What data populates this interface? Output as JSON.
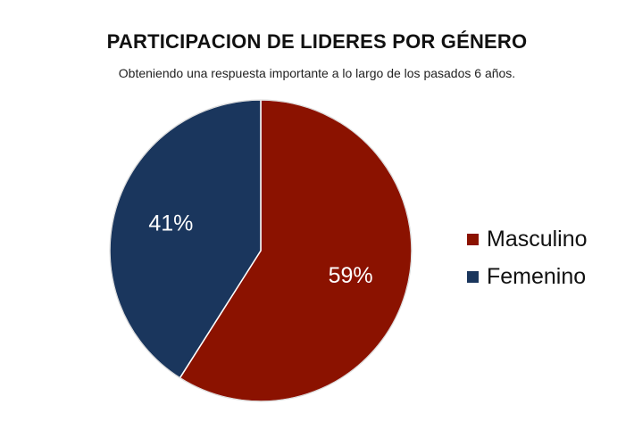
{
  "chart_data": {
    "type": "pie",
    "title": "PARTICIPACION DE LIDERES POR GÉNERO",
    "subtitle": "Obteniendo una respuesta importante a lo largo de los pasados 6 años.",
    "legend_position": "right",
    "slices": [
      {
        "label": "Masculino",
        "value": 59,
        "display": "59%",
        "color": "#8B1200"
      },
      {
        "label": "Femenino",
        "value": 41,
        "display": "41%",
        "color": "#1A365D"
      }
    ]
  }
}
